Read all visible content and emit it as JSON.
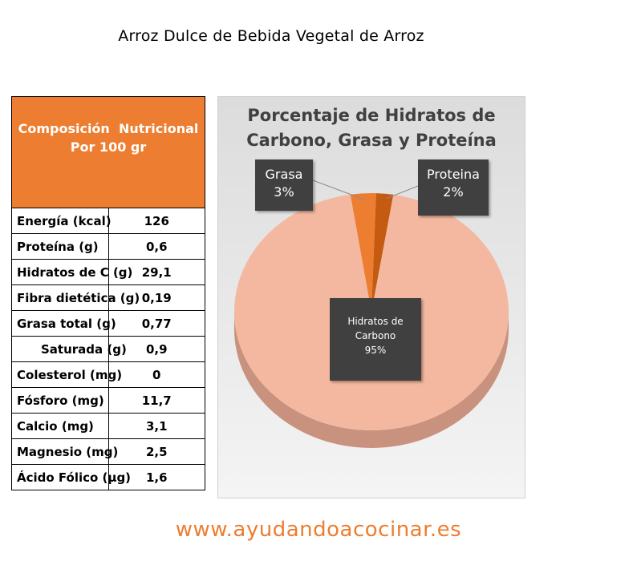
{
  "page_title": "Arroz Dulce de Bebida Vegetal de Arroz",
  "table": {
    "header_line1": "Composición  Nutricional",
    "header_line2": "Por 100 gr",
    "rows": [
      {
        "name": "Energía (kcal)",
        "value": "126"
      },
      {
        "name": "Proteína (g)",
        "value": "0,6"
      },
      {
        "name": "Hidratos de C (g)",
        "value": "29,1"
      },
      {
        "name": "Fibra dietética (g)",
        "value": "0,19"
      },
      {
        "name": "Grasa total (g)",
        "value": "0,77"
      },
      {
        "name": "Saturada (g)",
        "value": "0,9"
      },
      {
        "name": "Colesterol (mg)",
        "value": "0"
      },
      {
        "name": "Fósforo (mg)",
        "value": "11,7"
      },
      {
        "name": "Calcio (mg)",
        "value": "3,1"
      },
      {
        "name": "Magnesio (mg)",
        "value": "2,5"
      },
      {
        "name": "Ácido Fólico (µg)",
        "value": "1,6"
      }
    ]
  },
  "chart_data": {
    "type": "pie",
    "title_line1": "Porcentaje de Hidratos de",
    "title_line2": "Carbono, Grasa y Proteína",
    "slices": [
      {
        "label_line1": "Hidratos de",
        "label_line2": "Carbono",
        "percent_label": "95%",
        "value": 95,
        "color": "#f4b8a0"
      },
      {
        "label_line1": "Grasa",
        "label_line2": "",
        "percent_label": "3%",
        "value": 3,
        "color": "#ed7d31"
      },
      {
        "label_line1": "Proteina",
        "label_line2": "",
        "percent_label": "2%",
        "value": 2,
        "color": "#c55a11"
      }
    ]
  },
  "footer": {
    "website": "www.ayudandoacocinar.es"
  }
}
